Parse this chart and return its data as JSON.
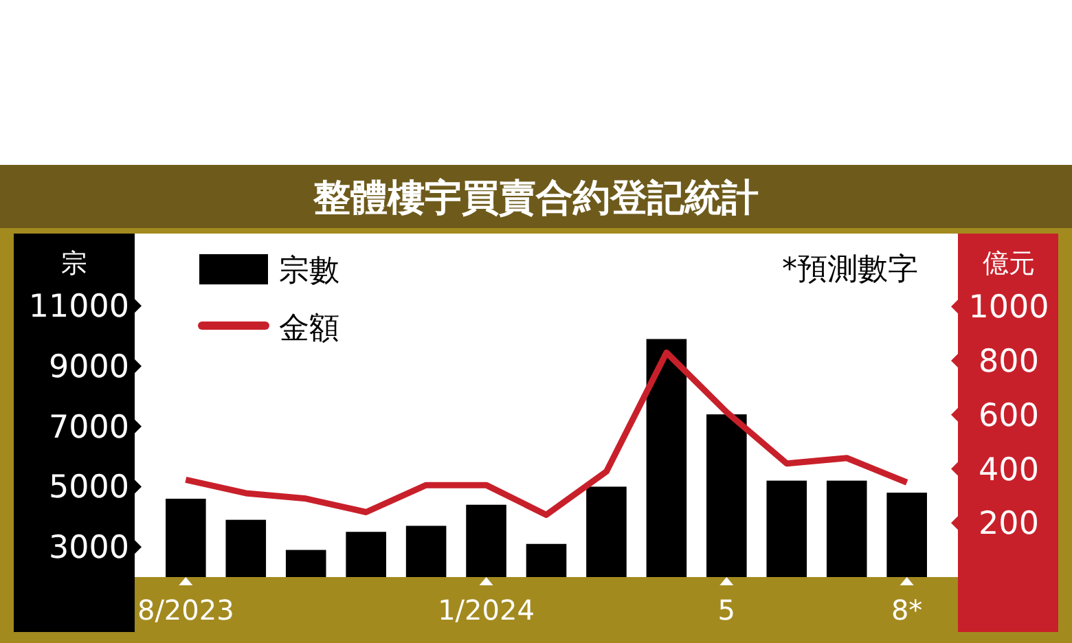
{
  "chart_data": {
    "type": "bar",
    "title": "整體樓宇買賣合約登記統計",
    "ylabel": "宗",
    "y2label": "億元",
    "annotations": [
      "*預測數字"
    ],
    "categories": [
      "8/2023",
      null,
      null,
      null,
      null,
      "1/2024",
      null,
      null,
      null,
      "5",
      null,
      null,
      "8*"
    ],
    "series": [
      {
        "name": "宗數",
        "color": "#000000",
        "values": [
          4600,
          3900,
          2900,
          3500,
          3700,
          4400,
          3100,
          5000,
          9900,
          7400,
          5200,
          5200,
          4800
        ]
      },
      {
        "name": "金額",
        "type": "line",
        "axis": "y2",
        "color": "#c8202a",
        "values": [
          360,
          310,
          290,
          240,
          340,
          340,
          230,
          390,
          830,
          610,
          420,
          440,
          350
        ]
      }
    ],
    "ylim": [
      2000,
      13400
    ],
    "yticks": [
      3000,
      5000,
      7000,
      9000,
      11000
    ],
    "y2lim": [
      0,
      1270
    ],
    "y2ticks": [
      200,
      400,
      600,
      800,
      1000
    ],
    "legend": "top left",
    "grid": false
  }
}
